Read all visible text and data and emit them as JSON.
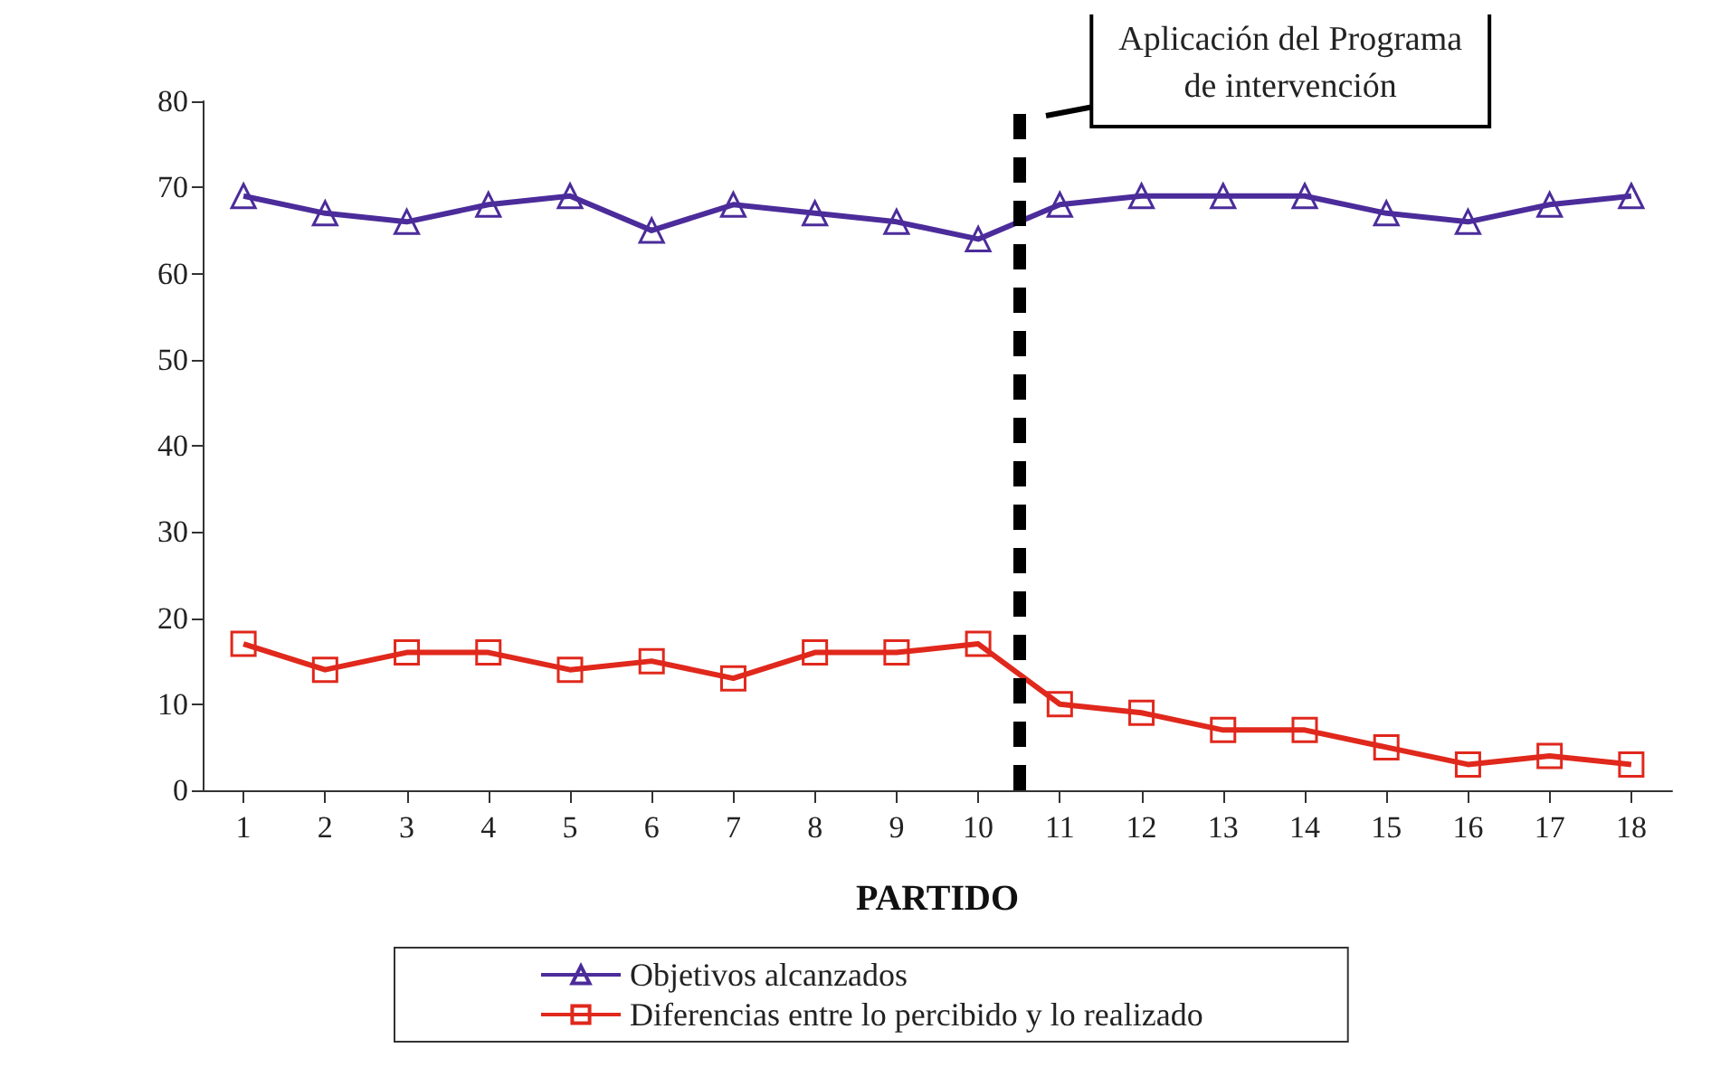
{
  "chart_data": {
    "type": "line",
    "xlabel": "PARTIDO",
    "x": [
      1,
      2,
      3,
      4,
      5,
      6,
      7,
      8,
      9,
      10,
      11,
      12,
      13,
      14,
      15,
      16,
      17,
      18
    ],
    "xlim": [
      0.5,
      18.5
    ],
    "xticks": [
      1,
      2,
      3,
      4,
      5,
      6,
      7,
      8,
      9,
      10,
      11,
      12,
      13,
      14,
      15,
      16,
      17,
      18
    ],
    "ylim": [
      0,
      80
    ],
    "yticks": [
      0,
      10,
      20,
      30,
      40,
      50,
      60,
      70,
      80
    ],
    "series": [
      {
        "name": "Objetivos alcanzados",
        "color": "#4b2c9a",
        "marker": "triangle",
        "values": [
          69,
          67,
          66,
          68,
          69,
          65,
          68,
          67,
          66,
          64,
          68,
          69,
          69,
          69,
          67,
          66,
          68,
          69
        ]
      },
      {
        "name": "Diferencias entre lo percibido y lo realizado",
        "color": "#e0281c",
        "marker": "square",
        "values": [
          17,
          14,
          16,
          16,
          14,
          15,
          13,
          16,
          16,
          17,
          10,
          9,
          7,
          7,
          5,
          3,
          4,
          3
        ]
      }
    ],
    "ref_lines": [
      {
        "axis": "x",
        "value": 10.5,
        "label": "Aplicación del Programa\nde intervención",
        "color": "#000000",
        "line_style": "dashed"
      }
    ],
    "grid": false,
    "legend": "bottom",
    "line_style": "solid"
  }
}
